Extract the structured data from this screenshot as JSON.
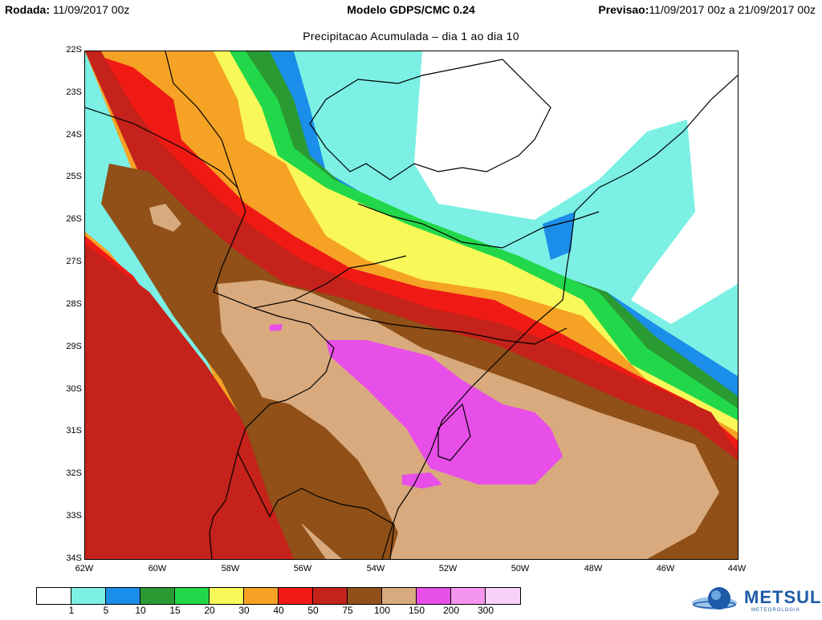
{
  "header": {
    "run_label": "Rodada:",
    "run_value": "11/09/2017 00z",
    "model_title": "Modelo GDPS/CMC 0.24",
    "forecast_label": "Previsao:",
    "forecast_value": "11/09/2017 00z a 21/09/2017 00z",
    "subtitle": "Precipitacao Acumulada – dia 1 ao dia 10"
  },
  "axes": {
    "lat_labels": [
      "22S",
      "23S",
      "24S",
      "25S",
      "26S",
      "27S",
      "28S",
      "29S",
      "30S",
      "31S",
      "32S",
      "33S",
      "34S"
    ],
    "lon_labels": [
      "62W",
      "60W",
      "58W",
      "56W",
      "54W",
      "52W",
      "50W",
      "48W",
      "46W",
      "44W"
    ]
  },
  "legend": {
    "levels": [
      "1",
      "5",
      "10",
      "15",
      "20",
      "30",
      "40",
      "50",
      "75",
      "100",
      "150",
      "200",
      "300"
    ],
    "colors": [
      "#ffffff",
      "#7cf0e4",
      "#1a8ee8",
      "#2a9a32",
      "#22d84a",
      "#f8f858",
      "#f6a224",
      "#f01a14",
      "#c4221a",
      "#905018",
      "#d8aa7e",
      "#e84ee8",
      "#f496f0",
      "#f8d0f8"
    ]
  },
  "map_colors": {
    "light_cyan": "#7cf0e4",
    "blue": "#1a8ee8",
    "dark_green": "#2a9a32",
    "green": "#22d84a",
    "yellow": "#f8f858",
    "orange": "#f6a224",
    "red": "#f01a14",
    "dark_red": "#c4221a",
    "brown": "#905018",
    "tan": "#d8aa7e",
    "magenta": "#e84ee8"
  },
  "logo": {
    "text": "METSUL",
    "subtext": "METEOROLOGIA",
    "icon": "globe-icon"
  }
}
